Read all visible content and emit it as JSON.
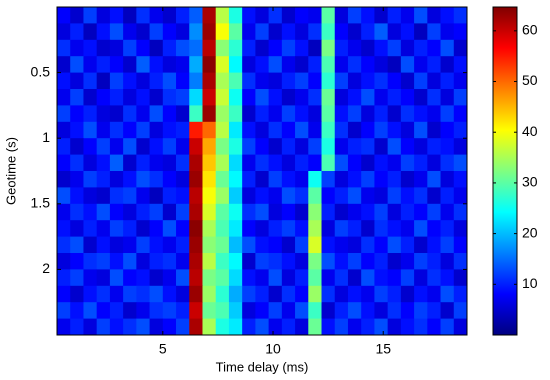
{
  "chart_data": {
    "type": "heatmap",
    "x_label": "Time delay (ms)",
    "y_label": "Geotime (s)",
    "xlim": [
      0.2,
      18.8
    ],
    "ylim": [
      0,
      2.5
    ],
    "y_reversed": true,
    "xticks": [
      5,
      10,
      15
    ],
    "yticks": [
      0.5,
      1,
      1.5,
      2
    ],
    "colormap": "jet",
    "clim": [
      0,
      64.7
    ],
    "cticks": [
      10,
      20,
      30,
      40,
      50,
      60
    ],
    "z": [
      [
        8,
        5,
        12,
        6,
        9,
        4,
        11,
        7,
        5,
        10,
        14,
        62,
        36,
        26,
        9,
        6,
        11,
        5,
        8,
        7,
        30,
        6,
        12,
        9,
        5,
        10,
        7,
        13,
        6,
        9,
        11
      ],
      [
        6,
        10,
        4,
        9,
        13,
        7,
        5,
        12,
        8,
        6,
        17,
        63,
        40,
        30,
        7,
        12,
        5,
        9,
        6,
        11,
        28,
        8,
        5,
        10,
        14,
        6,
        9,
        4,
        12,
        7,
        8
      ],
      [
        11,
        7,
        9,
        5,
        6,
        12,
        8,
        4,
        10,
        13,
        15,
        61,
        33,
        27,
        10,
        5,
        8,
        12,
        9,
        4,
        32,
        10,
        7,
        5,
        9,
        12,
        6,
        10,
        8,
        13,
        5
      ],
      [
        5,
        13,
        7,
        10,
        8,
        5,
        14,
        9,
        6,
        7,
        19,
        64,
        38,
        24,
        6,
        9,
        13,
        7,
        5,
        10,
        29,
        7,
        11,
        8,
        6,
        4,
        13,
        7,
        10,
        5,
        9
      ],
      [
        9,
        6,
        11,
        4,
        12,
        9,
        6,
        10,
        13,
        8,
        16,
        62,
        35,
        29,
        11,
        7,
        6,
        10,
        12,
        8,
        27,
        12,
        6,
        9,
        11,
        8,
        5,
        12,
        6,
        10,
        7
      ],
      [
        7,
        12,
        5,
        8,
        10,
        6,
        9,
        5,
        11,
        12,
        22,
        60,
        37,
        25,
        8,
        13,
        9,
        5,
        7,
        11,
        31,
        6,
        9,
        13,
        7,
        10,
        8,
        5,
        11,
        6,
        12
      ],
      [
        12,
        8,
        10,
        6,
        5,
        11,
        7,
        13,
        8,
        5,
        28,
        63,
        34,
        28,
        5,
        10,
        7,
        12,
        9,
        6,
        30,
        9,
        12,
        6,
        10,
        5,
        11,
        9,
        7,
        12,
        8
      ],
      [
        6,
        9,
        13,
        7,
        11,
        8,
        12,
        6,
        9,
        10,
        55,
        50,
        36,
        23,
        9,
        6,
        11,
        8,
        13,
        7,
        28,
        11,
        5,
        8,
        12,
        9,
        6,
        13,
        5,
        8,
        10
      ],
      [
        10,
        5,
        8,
        12,
        7,
        13,
        5,
        9,
        12,
        7,
        60,
        46,
        32,
        26,
        12,
        8,
        5,
        10,
        6,
        12,
        26,
        7,
        10,
        11,
        5,
        13,
        8,
        6,
        10,
        9,
        6
      ],
      [
        8,
        11,
        6,
        9,
        14,
        5,
        10,
        7,
        6,
        11,
        62,
        44,
        35,
        22,
        7,
        11,
        9,
        6,
        10,
        8,
        29,
        13,
        8,
        5,
        9,
        7,
        12,
        10,
        6,
        11,
        13
      ],
      [
        5,
        7,
        12,
        10,
        6,
        9,
        13,
        11,
        8,
        6,
        63,
        42,
        31,
        24,
        10,
        5,
        12,
        9,
        7,
        25,
        12,
        6,
        9,
        12,
        8,
        10,
        5,
        7,
        13,
        6,
        9
      ],
      [
        13,
        9,
        6,
        5,
        11,
        12,
        7,
        4,
        10,
        9,
        61,
        40,
        34,
        21,
        6,
        9,
        7,
        13,
        11,
        30,
        8,
        10,
        13,
        7,
        6,
        12,
        9,
        11,
        5,
        10,
        7
      ],
      [
        7,
        11,
        9,
        13,
        8,
        6,
        10,
        12,
        5,
        12,
        62,
        38,
        30,
        25,
        11,
        13,
        6,
        8,
        5,
        33,
        10,
        5,
        7,
        9,
        12,
        6,
        10,
        8,
        12,
        7,
        11
      ],
      [
        9,
        6,
        10,
        7,
        12,
        10,
        5,
        8,
        13,
        8,
        64,
        35,
        29,
        23,
        8,
        6,
        10,
        12,
        9,
        35,
        6,
        12,
        10,
        5,
        11,
        9,
        7,
        13,
        8,
        10,
        6
      ],
      [
        11,
        13,
        5,
        9,
        6,
        7,
        12,
        9,
        7,
        10,
        63,
        33,
        31,
        20,
        13,
        9,
        8,
        5,
        12,
        38,
        9,
        7,
        6,
        11,
        8,
        13,
        10,
        5,
        9,
        12,
        8
      ],
      [
        6,
        8,
        11,
        12,
        9,
        13,
        6,
        10,
        11,
        7,
        62,
        36,
        28,
        24,
        5,
        12,
        11,
        9,
        6,
        32,
        13,
        9,
        12,
        8,
        10,
        5,
        7,
        12,
        10,
        6,
        11
      ],
      [
        10,
        12,
        7,
        6,
        13,
        8,
        9,
        5,
        7,
        13,
        61,
        32,
        30,
        22,
        9,
        7,
        13,
        6,
        10,
        30,
        7,
        11,
        5,
        13,
        9,
        8,
        12,
        6,
        11,
        9,
        5
      ],
      [
        8,
        5,
        9,
        11,
        7,
        12,
        11,
        13,
        9,
        6,
        63,
        34,
        27,
        19,
        12,
        10,
        5,
        11,
        8,
        34,
        11,
        6,
        9,
        7,
        12,
        10,
        5,
        9,
        7,
        13,
        10
      ],
      [
        12,
        9,
        13,
        8,
        10,
        5,
        7,
        11,
        12,
        10,
        60,
        31,
        29,
        21,
        6,
        8,
        12,
        7,
        13,
        28,
        5,
        10,
        13,
        9,
        6,
        11,
        8,
        12,
        10,
        5,
        12
      ],
      [
        7,
        10,
        6,
        12,
        9,
        11,
        13,
        6,
        8,
        12,
        62,
        35,
        26,
        23,
        10,
        13,
        7,
        10,
        6,
        31,
        9,
        12,
        7,
        10,
        13,
        6,
        9,
        11,
        8,
        12,
        6
      ]
    ]
  }
}
